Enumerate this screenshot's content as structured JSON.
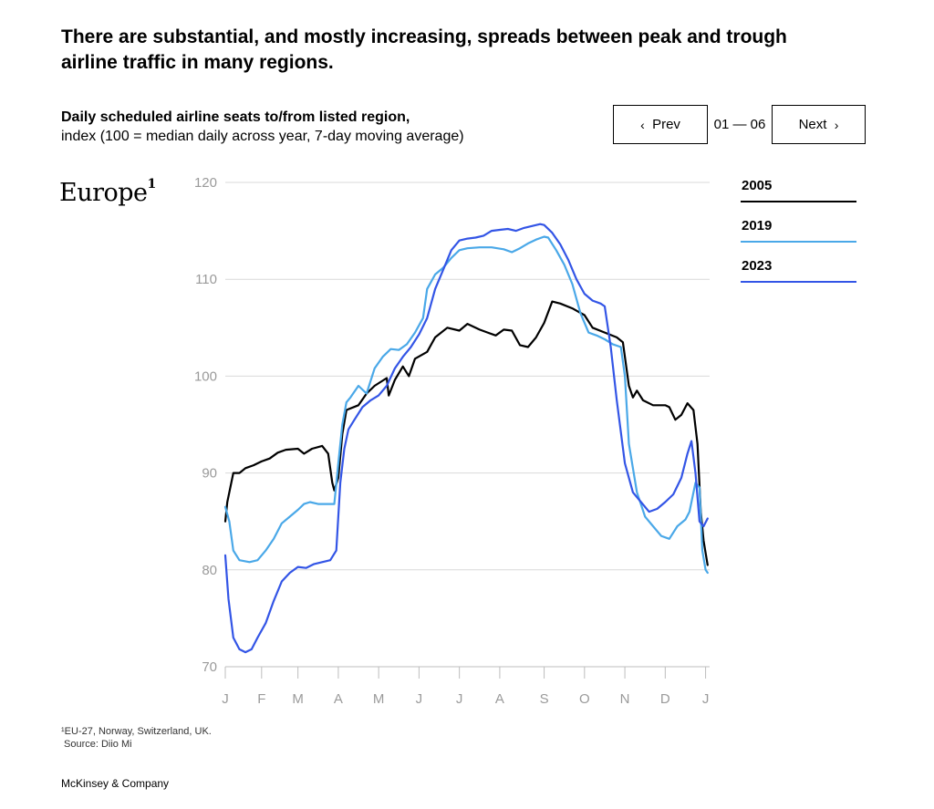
{
  "headline": "There are substantial, and mostly increasing, spreads between peak and trough airline traffic in many regions.",
  "subtitle": {
    "bold": "Daily scheduled airline seats to/from listed region,",
    "normal": "index (100 = median daily across year, 7-day moving average)"
  },
  "pager": {
    "prev_label": "Prev",
    "next_label": "Next",
    "indicator": "01 — 06",
    "prev_icon": "chevron-left-icon",
    "next_icon": "chevron-right-icon"
  },
  "region": {
    "name": "Europe",
    "footnote_marker": "1"
  },
  "footnote": {
    "note": "¹EU-27, Norway, Switzerland, UK.",
    "source": "Source: Diio Mi"
  },
  "brand": "McKinsey & Company",
  "chart_data": {
    "type": "line",
    "title": "Europe",
    "ylim": [
      70,
      120
    ],
    "yticks": [
      70,
      80,
      90,
      100,
      110,
      120
    ],
    "xlim": [
      0,
      12
    ],
    "xticks": [
      {
        "label": "J",
        "x": 0
      },
      {
        "label": "F",
        "x": 0.9
      },
      {
        "label": "M",
        "x": 1.8
      },
      {
        "label": "A",
        "x": 2.8
      },
      {
        "label": "M",
        "x": 3.8
      },
      {
        "label": "J",
        "x": 4.8
      },
      {
        "label": "J",
        "x": 5.8
      },
      {
        "label": "A",
        "x": 6.8
      },
      {
        "label": "S",
        "x": 7.9
      },
      {
        "label": "O",
        "x": 8.9
      },
      {
        "label": "N",
        "x": 9.9
      },
      {
        "label": "D",
        "x": 10.9
      },
      {
        "label": "J",
        "x": 11.9
      }
    ],
    "grid": true,
    "legend": "right",
    "series": [
      {
        "name": "2005",
        "color": "#000000",
        "points": [
          [
            0,
            85
          ],
          [
            0.05,
            87
          ],
          [
            0.2,
            90
          ],
          [
            0.35,
            90
          ],
          [
            0.5,
            90.5
          ],
          [
            0.7,
            90.8
          ],
          [
            0.9,
            91.2
          ],
          [
            1.1,
            91.5
          ],
          [
            1.3,
            92.1
          ],
          [
            1.5,
            92.4
          ],
          [
            1.8,
            92.5
          ],
          [
            1.95,
            92
          ],
          [
            2.15,
            92.5
          ],
          [
            2.4,
            92.8
          ],
          [
            2.55,
            92
          ],
          [
            2.65,
            89
          ],
          [
            2.7,
            88.2
          ],
          [
            2.8,
            89.5
          ],
          [
            2.9,
            94
          ],
          [
            3.0,
            96.5
          ],
          [
            3.3,
            97
          ],
          [
            3.5,
            98.2
          ],
          [
            3.7,
            99
          ],
          [
            4.0,
            99.8
          ],
          [
            4.05,
            98
          ],
          [
            4.2,
            99.6
          ],
          [
            4.4,
            101
          ],
          [
            4.55,
            100
          ],
          [
            4.7,
            101.8
          ],
          [
            5.0,
            102.5
          ],
          [
            5.2,
            104
          ],
          [
            5.5,
            105
          ],
          [
            5.8,
            104.7
          ],
          [
            6.0,
            105.4
          ],
          [
            6.3,
            104.8
          ],
          [
            6.5,
            104.5
          ],
          [
            6.7,
            104.2
          ],
          [
            6.9,
            104.8
          ],
          [
            7.1,
            104.7
          ],
          [
            7.3,
            103.2
          ],
          [
            7.5,
            103
          ],
          [
            7.7,
            104
          ],
          [
            7.9,
            105.5
          ],
          [
            8.1,
            107.7
          ],
          [
            8.3,
            107.5
          ],
          [
            8.6,
            107
          ],
          [
            8.9,
            106.3
          ],
          [
            9.1,
            105
          ],
          [
            9.4,
            104.5
          ],
          [
            9.7,
            104
          ],
          [
            9.85,
            103.5
          ],
          [
            10.0,
            99
          ],
          [
            10.1,
            97.8
          ],
          [
            10.2,
            98.5
          ],
          [
            10.35,
            97.5
          ],
          [
            10.6,
            97
          ],
          [
            10.9,
            97
          ],
          [
            11.0,
            96.8
          ],
          [
            11.15,
            95.5
          ],
          [
            11.3,
            96
          ],
          [
            11.45,
            97.2
          ],
          [
            11.6,
            96.5
          ],
          [
            11.7,
            93
          ],
          [
            11.78,
            86
          ],
          [
            11.85,
            83
          ],
          [
            11.95,
            80.5
          ]
        ]
      },
      {
        "name": "2019",
        "color": "#4aa8e8",
        "points": [
          [
            0,
            86.5
          ],
          [
            0.1,
            85
          ],
          [
            0.2,
            82
          ],
          [
            0.35,
            81
          ],
          [
            0.6,
            80.8
          ],
          [
            0.8,
            81
          ],
          [
            1.0,
            82
          ],
          [
            1.2,
            83.2
          ],
          [
            1.4,
            84.8
          ],
          [
            1.6,
            85.5
          ],
          [
            1.8,
            86.2
          ],
          [
            1.95,
            86.8
          ],
          [
            2.1,
            87
          ],
          [
            2.3,
            86.8
          ],
          [
            2.5,
            86.8
          ],
          [
            2.7,
            86.8
          ],
          [
            2.8,
            91
          ],
          [
            2.9,
            95
          ],
          [
            3.0,
            97.3
          ],
          [
            3.1,
            97.8
          ],
          [
            3.3,
            99
          ],
          [
            3.5,
            98.2
          ],
          [
            3.7,
            100.8
          ],
          [
            3.9,
            102
          ],
          [
            4.1,
            102.8
          ],
          [
            4.3,
            102.7
          ],
          [
            4.5,
            103.3
          ],
          [
            4.7,
            104.5
          ],
          [
            4.9,
            106
          ],
          [
            5.0,
            109
          ],
          [
            5.2,
            110.5
          ],
          [
            5.4,
            111.2
          ],
          [
            5.6,
            112.2
          ],
          [
            5.8,
            113
          ],
          [
            6.0,
            113.2
          ],
          [
            6.3,
            113.3
          ],
          [
            6.6,
            113.3
          ],
          [
            6.9,
            113.1
          ],
          [
            7.1,
            112.8
          ],
          [
            7.3,
            113.2
          ],
          [
            7.5,
            113.7
          ],
          [
            7.7,
            114.1
          ],
          [
            7.9,
            114.4
          ],
          [
            8.0,
            114.3
          ],
          [
            8.2,
            113
          ],
          [
            8.4,
            111.5
          ],
          [
            8.6,
            109.5
          ],
          [
            8.8,
            106.5
          ],
          [
            9.0,
            104.5
          ],
          [
            9.2,
            104.2
          ],
          [
            9.4,
            103.8
          ],
          [
            9.6,
            103.3
          ],
          [
            9.8,
            103
          ],
          [
            9.9,
            100
          ],
          [
            10.0,
            93
          ],
          [
            10.2,
            88
          ],
          [
            10.4,
            85.5
          ],
          [
            10.6,
            84.5
          ],
          [
            10.8,
            83.5
          ],
          [
            11.0,
            83.2
          ],
          [
            11.2,
            84.5
          ],
          [
            11.4,
            85.2
          ],
          [
            11.5,
            86
          ],
          [
            11.65,
            89
          ],
          [
            11.75,
            88.5
          ],
          [
            11.82,
            82
          ],
          [
            11.9,
            80
          ],
          [
            11.95,
            79.7
          ]
        ]
      },
      {
        "name": "2023",
        "color": "#3355e6",
        "points": [
          [
            0,
            81.5
          ],
          [
            0.08,
            77
          ],
          [
            0.2,
            73
          ],
          [
            0.35,
            71.8
          ],
          [
            0.5,
            71.5
          ],
          [
            0.65,
            71.8
          ],
          [
            0.8,
            73
          ],
          [
            1.0,
            74.5
          ],
          [
            1.2,
            76.8
          ],
          [
            1.4,
            78.8
          ],
          [
            1.6,
            79.7
          ],
          [
            1.8,
            80.3
          ],
          [
            2.0,
            80.2
          ],
          [
            2.2,
            80.6
          ],
          [
            2.4,
            80.8
          ],
          [
            2.6,
            81
          ],
          [
            2.75,
            82
          ],
          [
            2.85,
            89
          ],
          [
            2.95,
            92.5
          ],
          [
            3.05,
            94.5
          ],
          [
            3.2,
            95.5
          ],
          [
            3.4,
            96.8
          ],
          [
            3.6,
            97.5
          ],
          [
            3.8,
            98
          ],
          [
            4.0,
            99
          ],
          [
            4.2,
            100.8
          ],
          [
            4.4,
            102
          ],
          [
            4.6,
            103
          ],
          [
            4.8,
            104.3
          ],
          [
            5.0,
            106
          ],
          [
            5.2,
            109
          ],
          [
            5.4,
            111
          ],
          [
            5.6,
            113
          ],
          [
            5.8,
            114
          ],
          [
            6.0,
            114.2
          ],
          [
            6.2,
            114.3
          ],
          [
            6.4,
            114.5
          ],
          [
            6.6,
            115
          ],
          [
            6.8,
            115.1
          ],
          [
            7.0,
            115.2
          ],
          [
            7.2,
            115
          ],
          [
            7.4,
            115.3
          ],
          [
            7.6,
            115.5
          ],
          [
            7.8,
            115.7
          ],
          [
            7.9,
            115.6
          ],
          [
            8.1,
            114.8
          ],
          [
            8.3,
            113.6
          ],
          [
            8.5,
            112
          ],
          [
            8.7,
            110
          ],
          [
            8.9,
            108.5
          ],
          [
            9.1,
            107.8
          ],
          [
            9.3,
            107.5
          ],
          [
            9.4,
            107.2
          ],
          [
            9.55,
            103
          ],
          [
            9.7,
            97.5
          ],
          [
            9.9,
            91
          ],
          [
            10.1,
            88
          ],
          [
            10.3,
            87
          ],
          [
            10.5,
            86
          ],
          [
            10.7,
            86.3
          ],
          [
            10.9,
            87
          ],
          [
            11.1,
            87.8
          ],
          [
            11.3,
            89.5
          ],
          [
            11.45,
            92
          ],
          [
            11.55,
            93.3
          ],
          [
            11.65,
            90
          ],
          [
            11.75,
            85
          ],
          [
            11.85,
            84.5
          ],
          [
            11.95,
            85.3
          ]
        ]
      }
    ]
  }
}
